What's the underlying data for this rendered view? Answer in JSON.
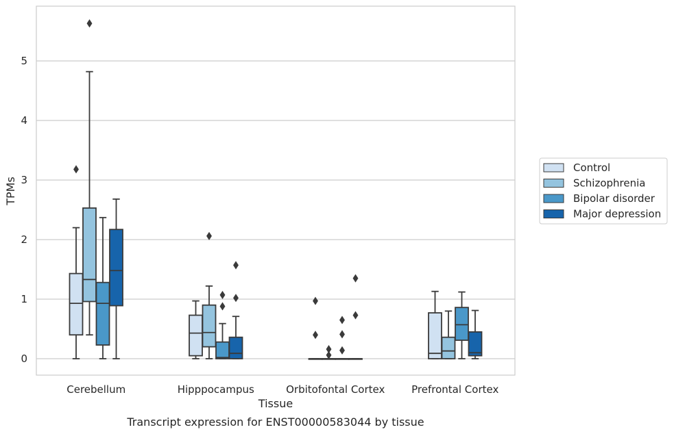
{
  "chart_data": {
    "type": "box",
    "title": "",
    "caption": "Transcript expression for ENST00000583044 by tissue",
    "xlabel": "Tissue",
    "ylabel": "TPMs",
    "ylim": [
      -0.27,
      5.95
    ],
    "yticks": [
      0,
      1,
      2,
      3,
      4,
      5
    ],
    "grid": "horizontal",
    "legend_position": "right",
    "categories": [
      "Cerebellum",
      "Hipppocampus",
      "Orbitofontal Cortex",
      "Prefrontal Cortex"
    ],
    "series": [
      {
        "name": "Control",
        "color": "#d0e1f2",
        "boxes": [
          {
            "whislo": 0,
            "q1": 0.4,
            "med": 0.93,
            "q3": 1.43,
            "whishi": 2.2,
            "fliers": [
              3.18
            ]
          },
          {
            "whislo": 0,
            "q1": 0.05,
            "med": 0.43,
            "q3": 0.73,
            "whishi": 0.97,
            "fliers": []
          },
          {
            "whislo": 0,
            "q1": 0,
            "med": 0,
            "q3": 0,
            "whishi": 0,
            "fliers": [
              0.97,
              0.4
            ]
          },
          {
            "whislo": 0,
            "q1": 0,
            "med": 0.09,
            "q3": 0.77,
            "whishi": 1.13,
            "fliers": []
          }
        ]
      },
      {
        "name": "Schizophrenia",
        "color": "#94c4df",
        "boxes": [
          {
            "whislo": 0.4,
            "q1": 0.96,
            "med": 1.33,
            "q3": 2.53,
            "whishi": 4.82,
            "fliers": [
              5.63
            ]
          },
          {
            "whislo": 0,
            "q1": 0.2,
            "med": 0.44,
            "q3": 0.9,
            "whishi": 1.22,
            "fliers": [
              2.06
            ]
          },
          {
            "whislo": 0,
            "q1": 0,
            "med": 0,
            "q3": 0,
            "whishi": 0,
            "fliers": [
              0.16,
              0.06
            ]
          },
          {
            "whislo": 0,
            "q1": 0,
            "med": 0.13,
            "q3": 0.36,
            "whishi": 0.8,
            "fliers": []
          }
        ]
      },
      {
        "name": "Bipolar disorder",
        "color": "#4a98c9",
        "boxes": [
          {
            "whislo": 0,
            "q1": 0.23,
            "med": 0.93,
            "q3": 1.28,
            "whishi": 2.37,
            "fliers": []
          },
          {
            "whislo": 0,
            "q1": 0,
            "med": 0.02,
            "q3": 0.28,
            "whishi": 0.59,
            "fliers": [
              1.07,
              0.88
            ]
          },
          {
            "whislo": 0,
            "q1": 0,
            "med": 0,
            "q3": 0,
            "whishi": 0,
            "fliers": [
              0.65,
              0.41,
              0.14
            ]
          },
          {
            "whislo": 0,
            "q1": 0.31,
            "med": 0.57,
            "q3": 0.86,
            "whishi": 1.12,
            "fliers": []
          }
        ]
      },
      {
        "name": "Major depression",
        "color": "#1764ab",
        "boxes": [
          {
            "whislo": 0,
            "q1": 0.89,
            "med": 1.48,
            "q3": 2.17,
            "whishi": 2.68,
            "fliers": []
          },
          {
            "whislo": 0,
            "q1": 0,
            "med": 0.09,
            "q3": 0.36,
            "whishi": 0.71,
            "fliers": [
              1.57,
              1.02
            ]
          },
          {
            "whislo": 0,
            "q1": 0,
            "med": 0,
            "q3": 0,
            "whishi": 0,
            "fliers": [
              1.35,
              0.73
            ]
          },
          {
            "whislo": 0,
            "q1": 0.05,
            "med": 0.1,
            "q3": 0.45,
            "whishi": 0.81,
            "fliers": []
          }
        ]
      }
    ]
  }
}
